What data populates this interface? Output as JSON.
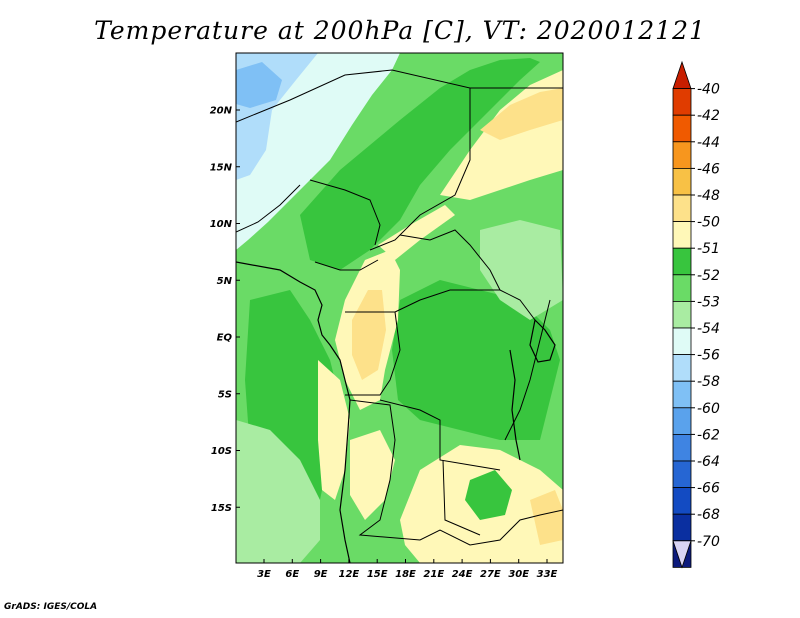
{
  "title": "Temperature at 200hPa [C], VT: 2020012121",
  "credit": "GrADS: IGES/COLA",
  "map": {
    "lat_ticks": [
      "20N",
      "15N",
      "10N",
      "5N",
      "EQ",
      "5S",
      "10S",
      "15S"
    ],
    "lon_ticks": [
      "3E",
      "6E",
      "9E",
      "12E",
      "15E",
      "18E",
      "21E",
      "24E",
      "27E",
      "30E",
      "33E"
    ]
  },
  "colorbar": {
    "labels": [
      "-40",
      "-42",
      "-44",
      "-46",
      "-48",
      "-50",
      "-51",
      "-52",
      "-53",
      "-54",
      "-56",
      "-58",
      "-60",
      "-62",
      "-64",
      "-66",
      "-68",
      "-70"
    ],
    "colors": [
      "#c81e00",
      "#e03c00",
      "#f05a00",
      "#f7961e",
      "#f8c145",
      "#fde18a",
      "#fff8b8",
      "#38c53e",
      "#6adb66",
      "#a9eca2",
      "#dffbf6",
      "#b0ddfa",
      "#7fc0f5",
      "#5aa2ec",
      "#3f84e2",
      "#2666d3",
      "#134bc2",
      "#0a2fa0",
      "#0c1a7c",
      "#d9d4f4"
    ]
  }
}
